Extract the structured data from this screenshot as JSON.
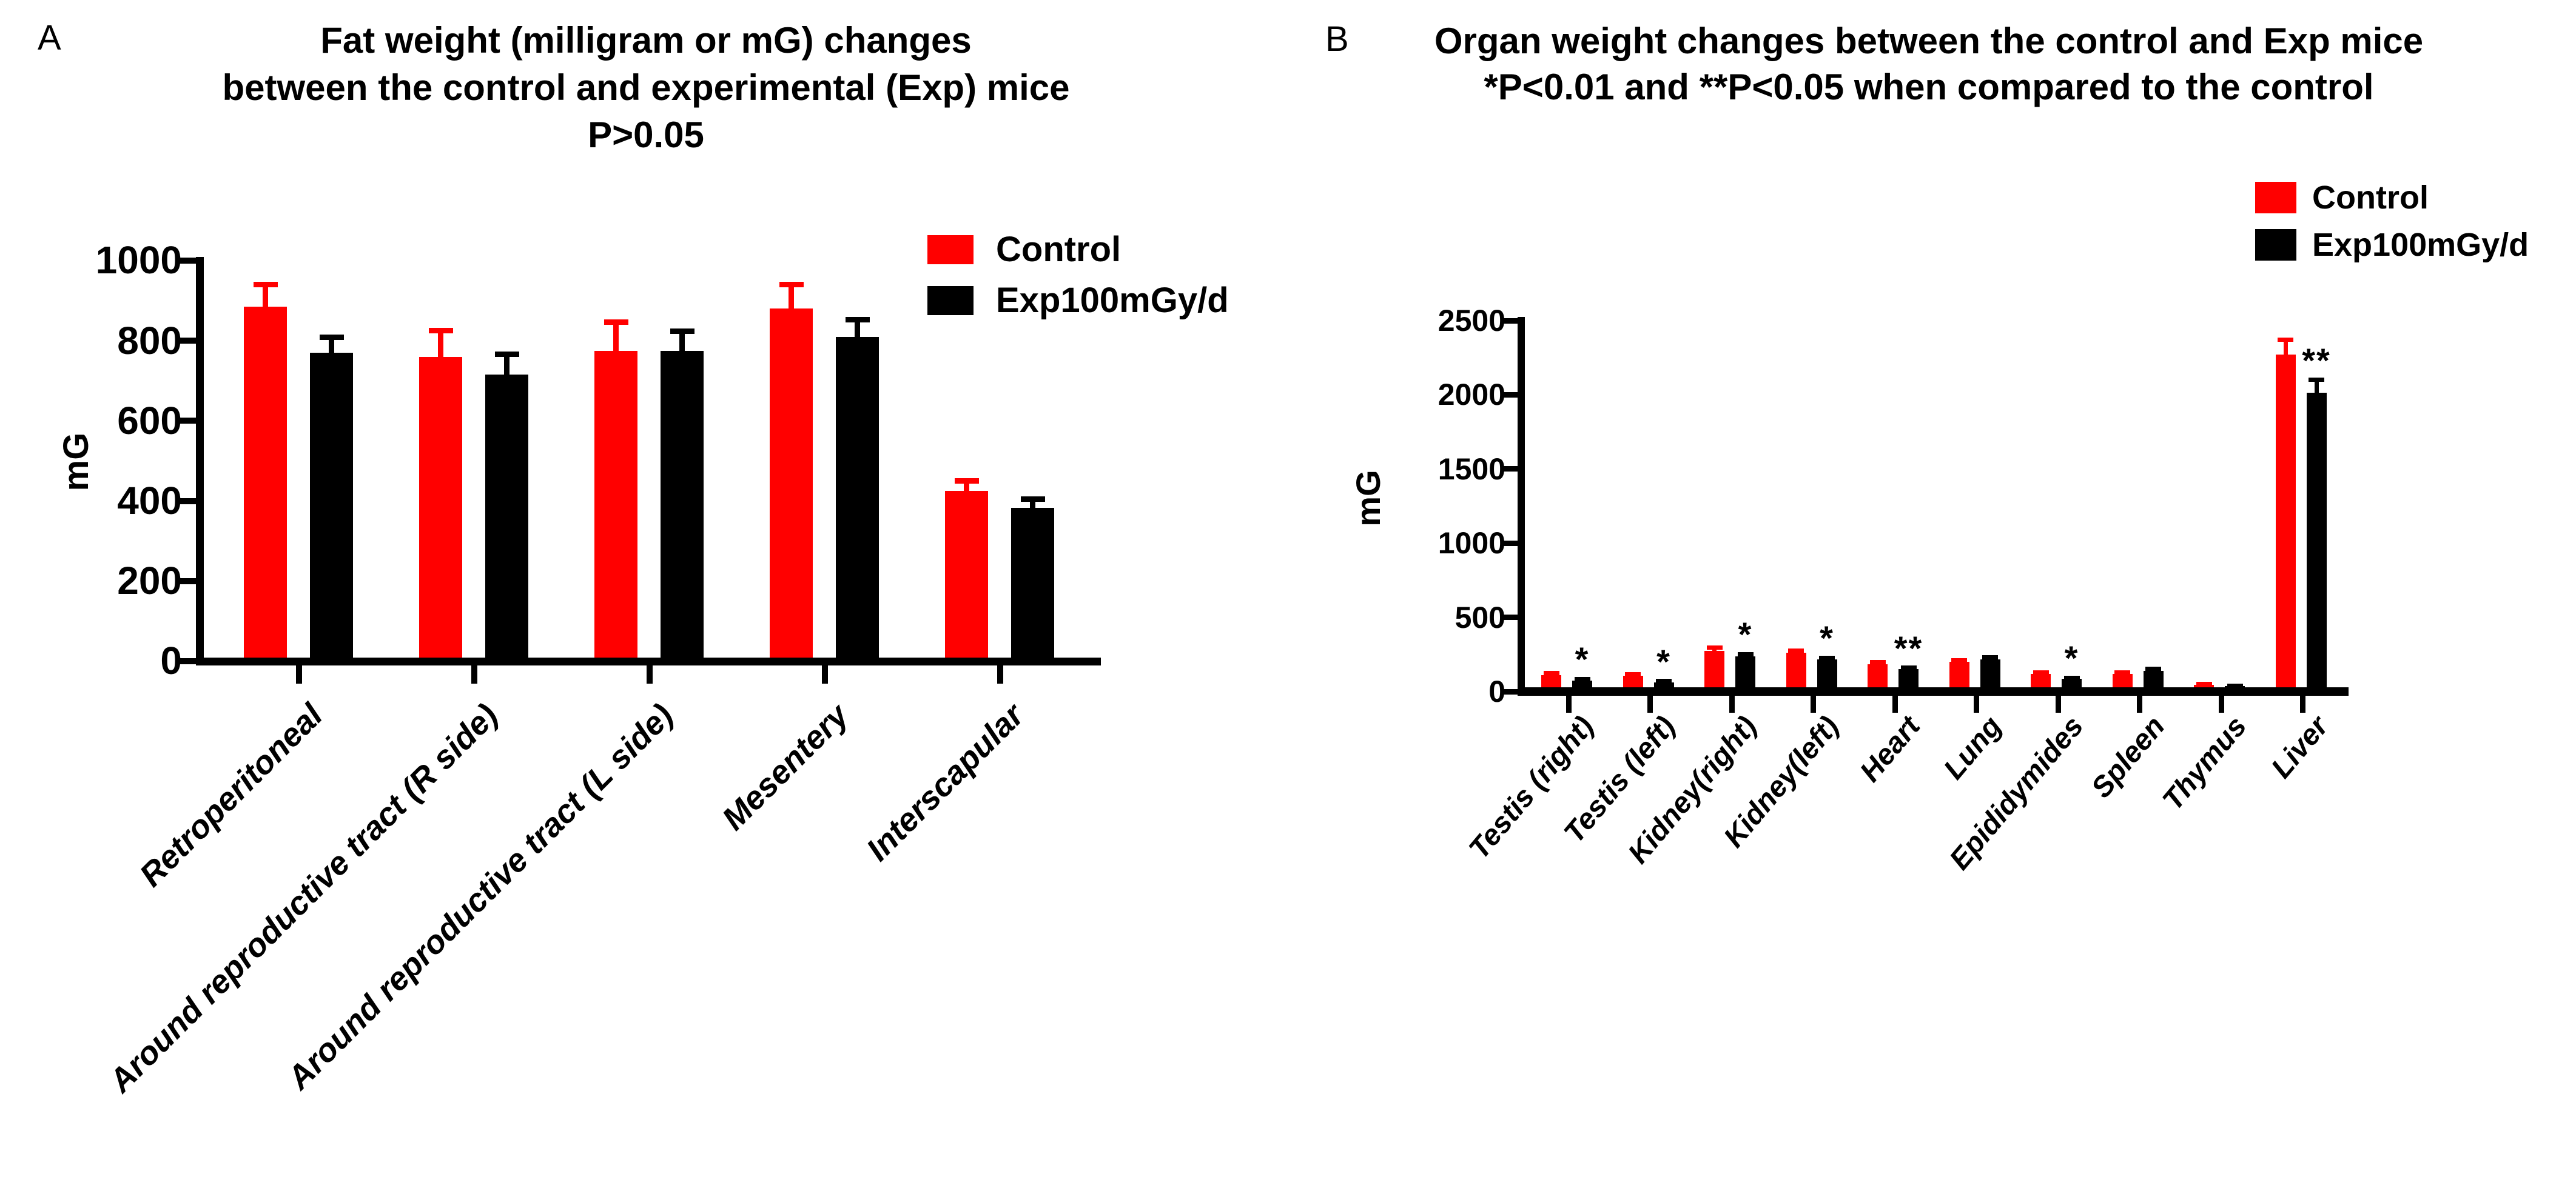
{
  "chart_data": [
    {
      "type": "bar",
      "panel_label": "A",
      "title_lines": [
        "Fat weight (milligram or mG) changes",
        "between the control and experimental (Exp) mice",
        "P>0.05"
      ],
      "ylabel": "mG",
      "xlabel": "",
      "ylim": [
        0,
        1000
      ],
      "yticks": [
        0,
        200,
        400,
        600,
        800,
        1000
      ],
      "grid": false,
      "legend_position": "top-right",
      "categories": [
        "Retroperitoneal",
        "Around reproductive tract (R side)",
        "Around reproductive tract (L side)",
        "Mesentery",
        "Interscapular"
      ],
      "series": [
        {
          "name": "Control",
          "color": "#ff0000",
          "values": [
            885,
            760,
            775,
            880,
            425
          ],
          "errors": [
            55,
            65,
            72,
            60,
            25
          ]
        },
        {
          "name": "Exp100mGy/d",
          "color": "#000000",
          "values": [
            770,
            715,
            775,
            810,
            382
          ],
          "errors": [
            38,
            52,
            48,
            43,
            22
          ]
        }
      ],
      "sig_labels": [
        "",
        "",
        "",
        "",
        ""
      ]
    },
    {
      "type": "bar",
      "panel_label": "B",
      "title_lines": [
        "Organ weight changes between the control and Exp mice",
        "*P<0.01 and **P<0.05 when compared to the control"
      ],
      "ylabel": "mG",
      "xlabel": "",
      "ylim": [
        0,
        2500
      ],
      "yticks": [
        0,
        500,
        1000,
        1500,
        2000,
        2500
      ],
      "grid": false,
      "legend_position": "top-right",
      "categories": [
        "Testis (right)",
        "Testis (left)",
        "Kidney(right)",
        "Kidney(left)",
        "Heart",
        "Lung",
        "Epididymides",
        "Spleen",
        "Thymus",
        "Liver"
      ],
      "series": [
        {
          "name": "Control",
          "color": "#ff0000",
          "values": [
            110,
            105,
            275,
            260,
            185,
            200,
            120,
            120,
            45,
            2270
          ],
          "errors": [
            15,
            12,
            20,
            15,
            12,
            12,
            10,
            10,
            6,
            100
          ]
        },
        {
          "name": "Exp100mGy/d",
          "color": "#000000",
          "values": [
            75,
            62,
            238,
            215,
            150,
            215,
            85,
            140,
            35,
            2015
          ],
          "errors": [
            10,
            8,
            14,
            12,
            10,
            15,
            8,
            12,
            5,
            85
          ]
        }
      ],
      "sig_labels": [
        "*",
        "*",
        "*",
        "*",
        "**",
        "",
        "*",
        "",
        "",
        "**"
      ]
    }
  ]
}
